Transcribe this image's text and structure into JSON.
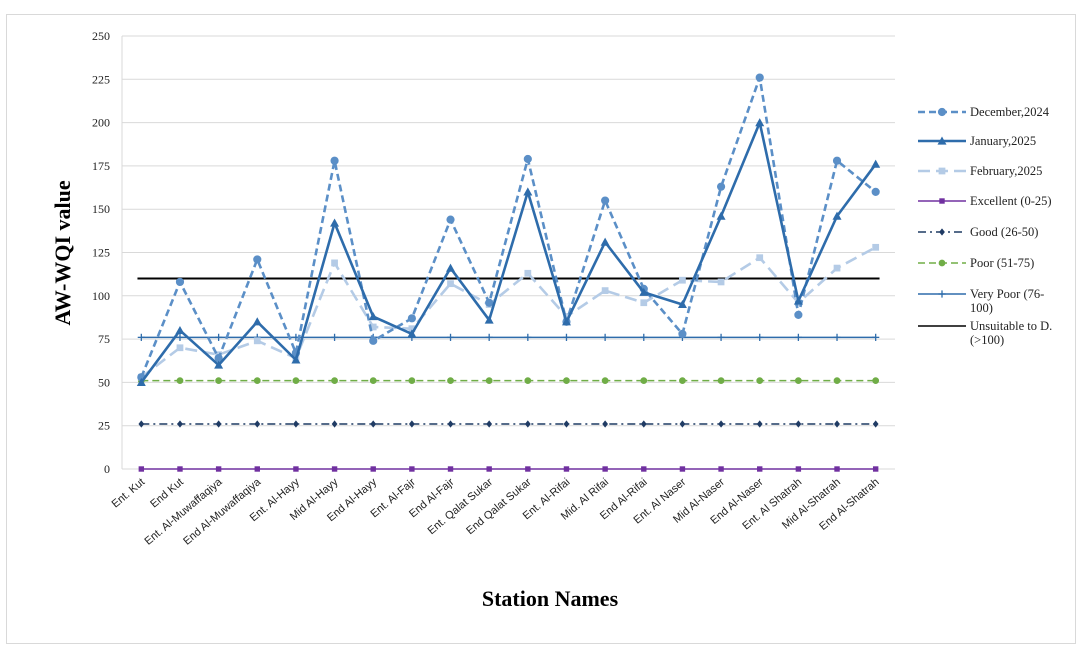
{
  "chart_data": {
    "type": "line",
    "title": "",
    "xlabel": "Station Names",
    "ylabel": "AW-WQI value",
    "ylim": [
      0,
      250
    ],
    "yticks": [
      0,
      25,
      50,
      75,
      100,
      125,
      150,
      175,
      200,
      225,
      250
    ],
    "grid": true,
    "legend_position": "right",
    "categories": [
      "Ent. Kut",
      "End Kut",
      "Ent. Al-Muwaffaqiya",
      "End Al-Muwaffaqiya",
      "Ent. Al-Hayy",
      "Mid Al-Hayy",
      "End Al-Hayy",
      "Ent. Al-Fajr",
      "End Al-Fajr",
      "Ent. Qalat Sukar",
      "End Qalat Sukar",
      "Ent. Al-Rifai",
      "Mid. Al Rifai",
      "End Al-Rifai",
      "Ent. Al Naser",
      "Mid Al-Naser",
      "End Al-Naser",
      "Ent. Al Shatrah",
      "Mid Al-Shatrah",
      "End Al-Shatrah"
    ],
    "series": [
      {
        "name": "December,2024",
        "color": "#5b8fc7",
        "dash": "dashed",
        "marker": "circle",
        "values": [
          53,
          108,
          64,
          121,
          67,
          178,
          74,
          87,
          144,
          96,
          179,
          85,
          155,
          104,
          78,
          163,
          226,
          89,
          178,
          160
        ]
      },
      {
        "name": "January,2025",
        "color": "#2e6cab",
        "dash": "solid",
        "marker": "triangle",
        "values": [
          50,
          80,
          60,
          85,
          63,
          142,
          88,
          78,
          116,
          86,
          160,
          85,
          131,
          102,
          95,
          146,
          200,
          97,
          146,
          176
        ]
      },
      {
        "name": "February,2025",
        "color": "#b4cbe6",
        "dash": "longdash",
        "marker": "square",
        "values": [
          53,
          70,
          66,
          74,
          64,
          119,
          82,
          81,
          107,
          95,
          113,
          88,
          103,
          96,
          109,
          108,
          122,
          96,
          116,
          128
        ]
      },
      {
        "name": "Excellent (0-25)",
        "color": "#7030a0",
        "dash": "solid",
        "marker": "square",
        "values": [
          0,
          0,
          0,
          0,
          0,
          0,
          0,
          0,
          0,
          0,
          0,
          0,
          0,
          0,
          0,
          0,
          0,
          0,
          0,
          0
        ]
      },
      {
        "name": "Good (26-50)",
        "color": "#1f3b64",
        "dash": "dashdot",
        "marker": "diamond",
        "values": [
          26,
          26,
          26,
          26,
          26,
          26,
          26,
          26,
          26,
          26,
          26,
          26,
          26,
          26,
          26,
          26,
          26,
          26,
          26,
          26
        ]
      },
      {
        "name": "Poor (51-75)",
        "color": "#70ad47",
        "dash": "dashed",
        "marker": "circle",
        "values": [
          51,
          51,
          51,
          51,
          51,
          51,
          51,
          51,
          51,
          51,
          51,
          51,
          51,
          51,
          51,
          51,
          51,
          51,
          51,
          51
        ]
      },
      {
        "name": "Very Poor (76-100)",
        "color": "#2e6cab",
        "dash": "solid",
        "marker": "plus",
        "values": [
          76,
          76,
          76,
          76,
          76,
          76,
          76,
          76,
          76,
          76,
          76,
          76,
          76,
          76,
          76,
          76,
          76,
          76,
          76,
          76
        ]
      },
      {
        "name": "Unsuitable to D. (>100)",
        "color": "#000000",
        "dash": "solid",
        "marker": "none",
        "values": [
          110,
          110,
          110,
          110,
          110,
          110,
          110,
          110,
          110,
          110,
          110,
          110,
          110,
          110,
          110,
          110,
          110,
          110,
          110,
          110
        ]
      }
    ],
    "legend_lines": [
      [
        "December,2024"
      ],
      [
        "January,2025"
      ],
      [
        "February,2025"
      ],
      [
        "Excellent (0-25)"
      ],
      [
        "Good (26-50)"
      ],
      [
        "Poor (51-75)"
      ],
      [
        "Very Poor (76-",
        "100)"
      ],
      [
        "Unsuitable to D.",
        "(>100)"
      ]
    ]
  }
}
